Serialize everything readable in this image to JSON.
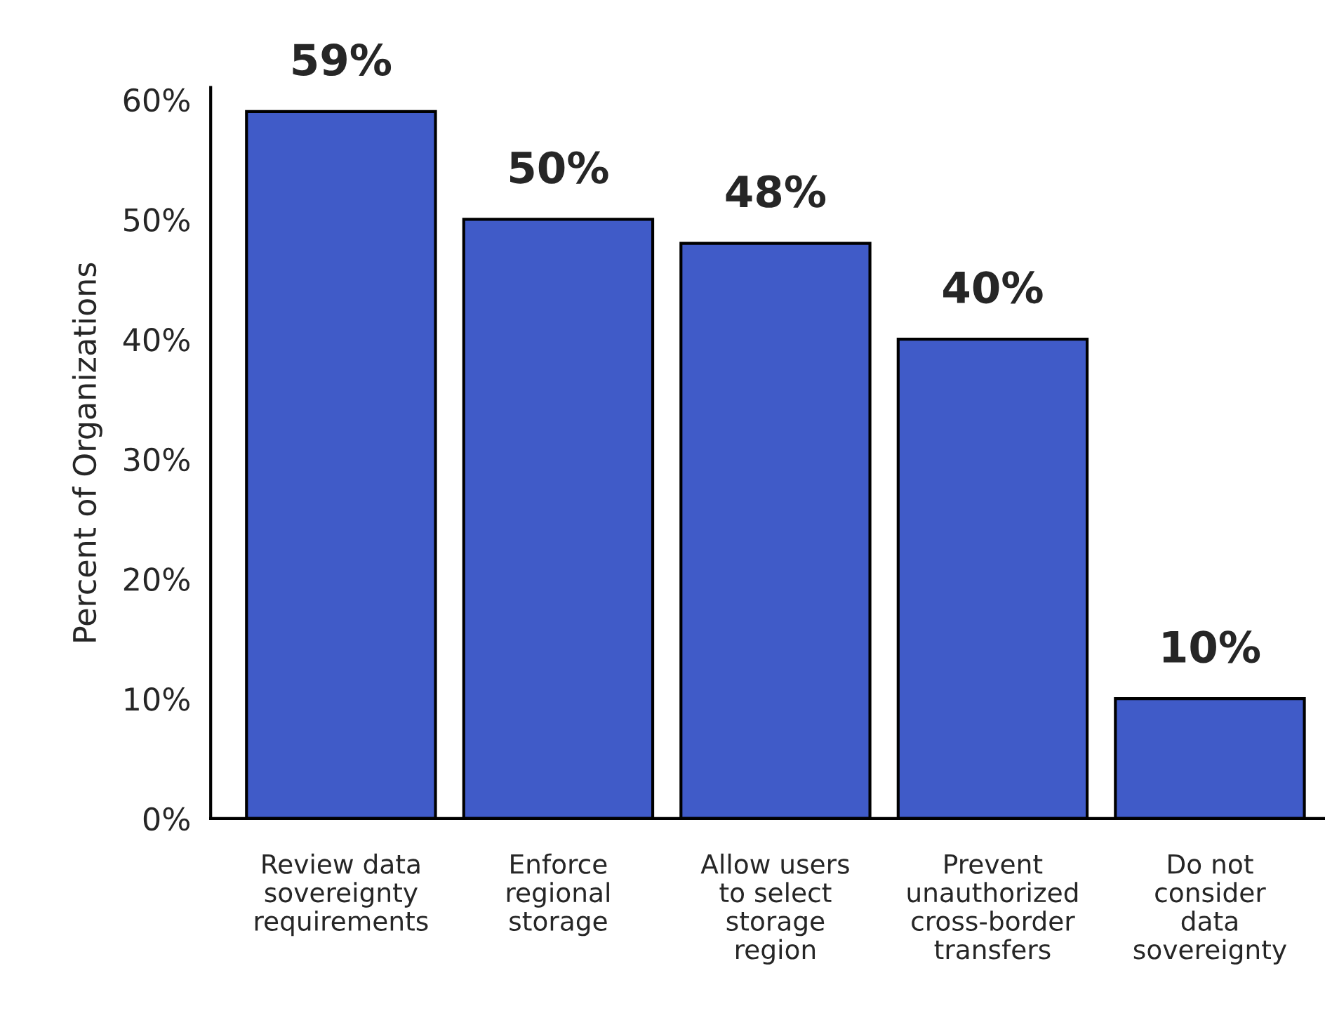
{
  "chart_data": {
    "type": "bar",
    "ylabel": "Percent of Organizations",
    "categories": [
      "Review data\nsovereignty\nrequirements",
      "Enforce\nregional\nstorage",
      "Allow users\nto select\nstorage\nregion",
      "Prevent\nunauthorized\ncross-border\ntransfers",
      "Do not\nconsider\ndata\nsovereignty"
    ],
    "values": [
      59,
      50,
      48,
      40,
      10
    ],
    "value_labels": [
      "59%",
      "50%",
      "48%",
      "40%",
      "10%"
    ],
    "color": "#405bc8",
    "ylim": [
      0,
      61
    ],
    "yticks": [
      {
        "value": 0,
        "label": "0%"
      },
      {
        "value": 10,
        "label": "10%"
      },
      {
        "value": 20,
        "label": "20%"
      },
      {
        "value": 30,
        "label": "30%"
      },
      {
        "value": 40,
        "label": "40%"
      },
      {
        "value": 50,
        "label": "50%"
      },
      {
        "value": 60,
        "label": "60%"
      }
    ],
    "grid": false,
    "legend": false
  }
}
